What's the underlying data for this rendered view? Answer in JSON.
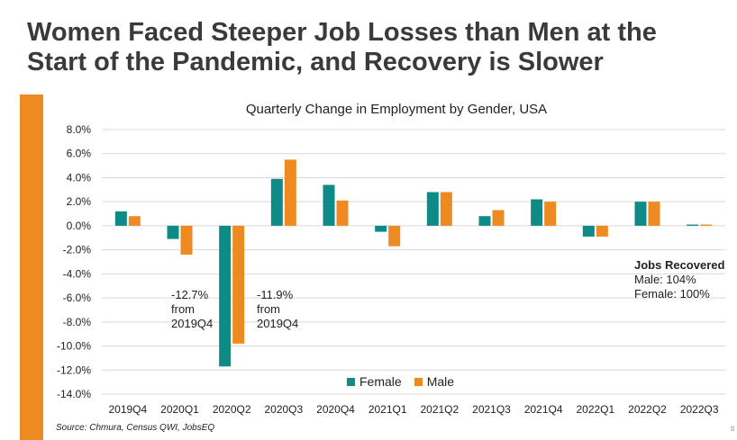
{
  "slide": {
    "title": "Women Faced Steeper Job Losses than Men at the Start of the Pandemic, and Recovery is Slower",
    "source": "Source: Chmura, Census QWI, JobsEQ",
    "corner_mark": "ti",
    "accent_color": "#ee8a22"
  },
  "annotations": {
    "female_drop": [
      "-12.7%",
      "from",
      "2019Q4"
    ],
    "male_drop": [
      "-11.9%",
      "from",
      "2019Q4"
    ],
    "jobs_recovered": {
      "heading": "Jobs Recovered",
      "male": "Male: 104%",
      "female": "Female: 100%"
    }
  },
  "chart_data": {
    "type": "bar",
    "title": "Quarterly Change in Employment by Gender, USA",
    "categories": [
      "2019Q4",
      "2020Q1",
      "2020Q2",
      "2020Q3",
      "2020Q4",
      "2021Q1",
      "2021Q2",
      "2021Q3",
      "2021Q4",
      "2022Q1",
      "2022Q2",
      "2022Q3"
    ],
    "series": [
      {
        "name": "Female",
        "color": "#0e8a87",
        "values": [
          1.2,
          -1.1,
          -11.7,
          3.9,
          3.4,
          -0.5,
          2.8,
          0.8,
          2.2,
          -0.9,
          2.0,
          0.1
        ]
      },
      {
        "name": "Male",
        "color": "#ee8a22",
        "values": [
          0.8,
          -2.4,
          -9.8,
          5.5,
          2.1,
          -1.7,
          2.8,
          1.3,
          2.0,
          -0.9,
          2.0,
          0.1
        ]
      }
    ],
    "ylim": [
      -14,
      8
    ],
    "yticks": [
      8,
      6,
      4,
      2,
      0,
      -2,
      -4,
      -6,
      -8,
      -10,
      -12,
      -14
    ],
    "ytick_labels": [
      "8.0%",
      "6.0%",
      "4.0%",
      "2.0%",
      "0.0%",
      "-2.0%",
      "-4.0%",
      "-6.0%",
      "-8.0%",
      "-10.0%",
      "-12.0%",
      "-14.0%"
    ],
    "grid": true,
    "legend": "bottom-center"
  }
}
